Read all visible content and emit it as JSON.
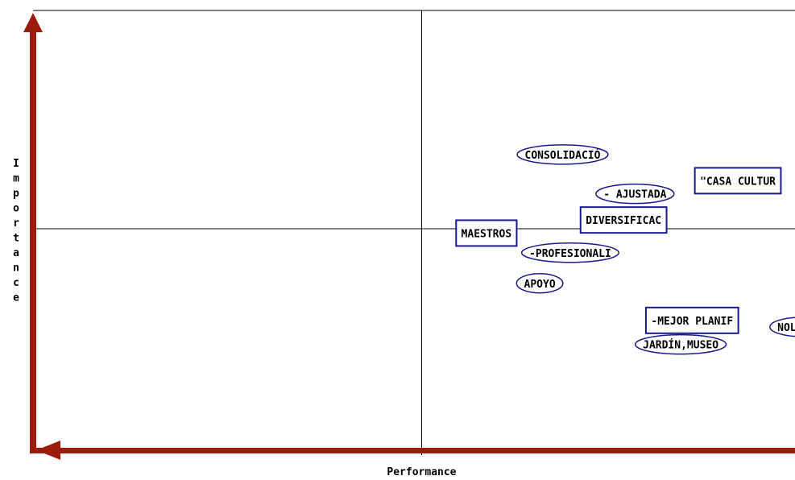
{
  "chart_data": {
    "type": "scatter",
    "xlabel": "Performance",
    "ylabel": "Importance",
    "xlim": [
      0,
      100
    ],
    "ylim": [
      0,
      100
    ],
    "divider": {
      "x": 51,
      "y": 50
    },
    "colors": {
      "axis_arrow": "#9b1c0c",
      "marker_border": "#1a1a8c",
      "grid": "#000000"
    },
    "points": [
      {
        "label": "CONSOLIDACIÓ",
        "x": 69.5,
        "y": 67.0,
        "shape": "ellipse"
      },
      {
        "label": "\"CASA CULTUR",
        "x": 92.5,
        "y": 61.0,
        "shape": "box"
      },
      {
        "label": "- AJUSTADA",
        "x": 79.0,
        "y": 58.0,
        "shape": "ellipse"
      },
      {
        "label": "DIVERSIFICAC",
        "x": 77.5,
        "y": 52.0,
        "shape": "box"
      },
      {
        "label": "MAESTROS",
        "x": 59.5,
        "y": 49.0,
        "shape": "box"
      },
      {
        "label": "-PROFESIONALI",
        "x": 70.5,
        "y": 44.5,
        "shape": "ellipse"
      },
      {
        "label": "APOYO",
        "x": 66.5,
        "y": 37.5,
        "shape": "ellipse"
      },
      {
        "label": "NOLOGIAS",
        "x": 101.0,
        "y": 27.5,
        "shape": "ellipse"
      },
      {
        "label": "-MEJOR PLANIF",
        "x": 86.5,
        "y": 29.0,
        "shape": "box"
      },
      {
        "label": "JARDÍN,MUSEO",
        "x": 85.0,
        "y": 23.5,
        "shape": "ellipse"
      }
    ]
  }
}
